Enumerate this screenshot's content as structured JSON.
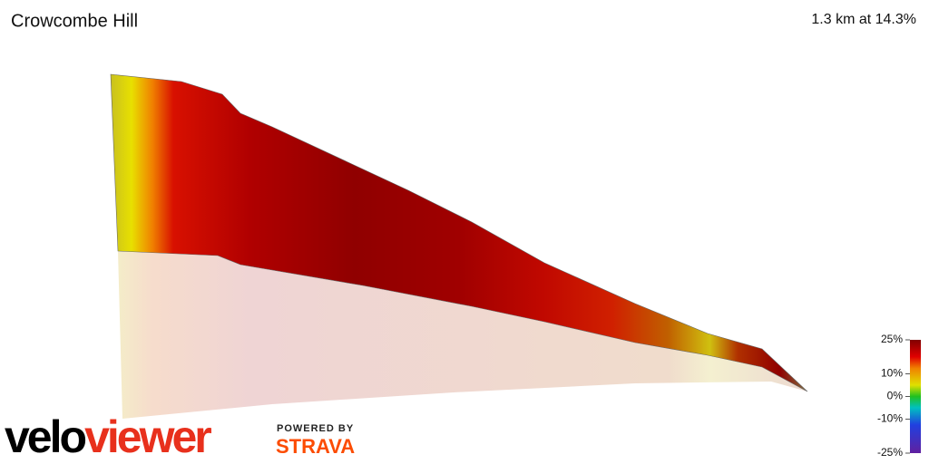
{
  "header": {
    "title": "Crowcombe Hill",
    "stat": "1.3 km at 14.3%"
  },
  "legend": {
    "ticks": [
      {
        "value": 25,
        "label": "25%"
      },
      {
        "value": 10,
        "label": "10%"
      },
      {
        "value": 0,
        "label": "0%"
      },
      {
        "value": -10,
        "label": "-10%"
      },
      {
        "value": -25,
        "label": "-25%"
      }
    ],
    "range": [
      -25,
      25
    ]
  },
  "branding": {
    "logo_velo": "velo",
    "logo_viewer": "viewer",
    "powered": "POWERED BY",
    "strava": "STRAVA"
  }
}
